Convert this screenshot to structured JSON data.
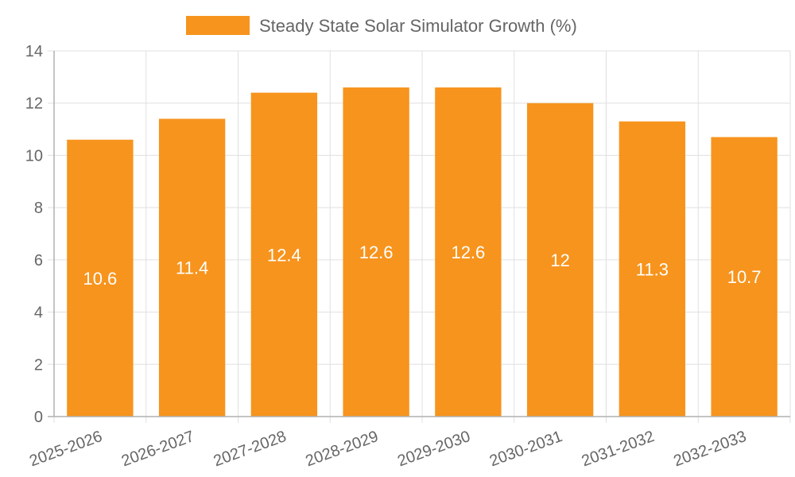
{
  "chart_data": {
    "type": "bar",
    "title": "",
    "xlabel": "",
    "ylabel": "",
    "categories": [
      "2025-2026",
      "2026-2027",
      "2027-2028",
      "2028-2029",
      "2029-2030",
      "2030-2031",
      "2031-2032",
      "2032-2033"
    ],
    "series": [
      {
        "name": "Steady State Solar Simulator Growth (%)",
        "values": [
          10.6,
          11.4,
          12.4,
          12.6,
          12.6,
          12,
          11.3,
          10.7
        ],
        "color": "#f7941d"
      }
    ],
    "data_labels": [
      "10.6",
      "11.4",
      "12.4",
      "12.6",
      "12.6",
      "12",
      "11.3",
      "10.7"
    ],
    "ylim": [
      0,
      14
    ],
    "yticks": [
      0,
      2,
      4,
      6,
      8,
      10,
      12,
      14
    ],
    "grid": true,
    "legend_position": "top-center",
    "colors": {
      "bar": "#f7941d",
      "grid": "#e0e0e0",
      "axis": "#b0b0b0",
      "text": "#666666",
      "data_label": "#ffffff"
    }
  }
}
